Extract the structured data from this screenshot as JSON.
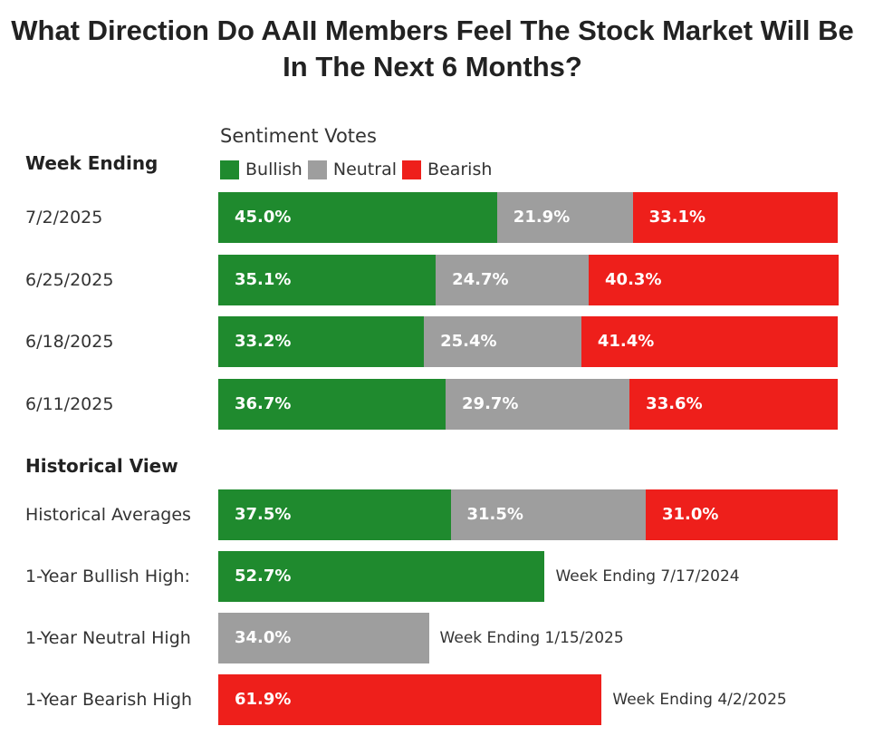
{
  "chart_data": {
    "type": "bar",
    "orientation": "horizontal-stacked",
    "title": "What Direction Do AAII Members Feel The Stock Market Will Be In The Next 6 Months?",
    "subtitle": "Sentiment Votes",
    "row_header": "Week Ending",
    "legend": [
      "Bullish",
      "Neutral",
      "Bearish"
    ],
    "colors": {
      "Bullish": "#1f8a2e",
      "Neutral": "#9e9e9e",
      "Bearish": "#ee1f1b"
    },
    "xlim": [
      0,
      100
    ],
    "weekly": [
      {
        "label": "7/2/2025",
        "values": [
          45.0,
          21.9,
          33.1
        ]
      },
      {
        "label": "6/25/2025",
        "values": [
          35.1,
          24.7,
          40.3
        ]
      },
      {
        "label": "6/18/2025",
        "values": [
          33.2,
          25.4,
          41.4
        ]
      },
      {
        "label": "6/11/2025",
        "values": [
          36.7,
          29.7,
          33.6
        ]
      }
    ],
    "historical_header": "Historical View",
    "historical_average": {
      "label": "Historical Averages",
      "values": [
        37.5,
        31.5,
        31.0
      ]
    },
    "highs": [
      {
        "label": "1-Year Bullish High:",
        "series": "Bullish",
        "value": 52.7,
        "note": "Week Ending 7/17/2024"
      },
      {
        "label": "1-Year Neutral High",
        "series": "Neutral",
        "value": 34.0,
        "note": "Week Ending 1/15/2025"
      },
      {
        "label": "1-Year Bearish High",
        "series": "Bearish",
        "value": 61.9,
        "note": "Week Ending 4/2/2025"
      }
    ]
  }
}
